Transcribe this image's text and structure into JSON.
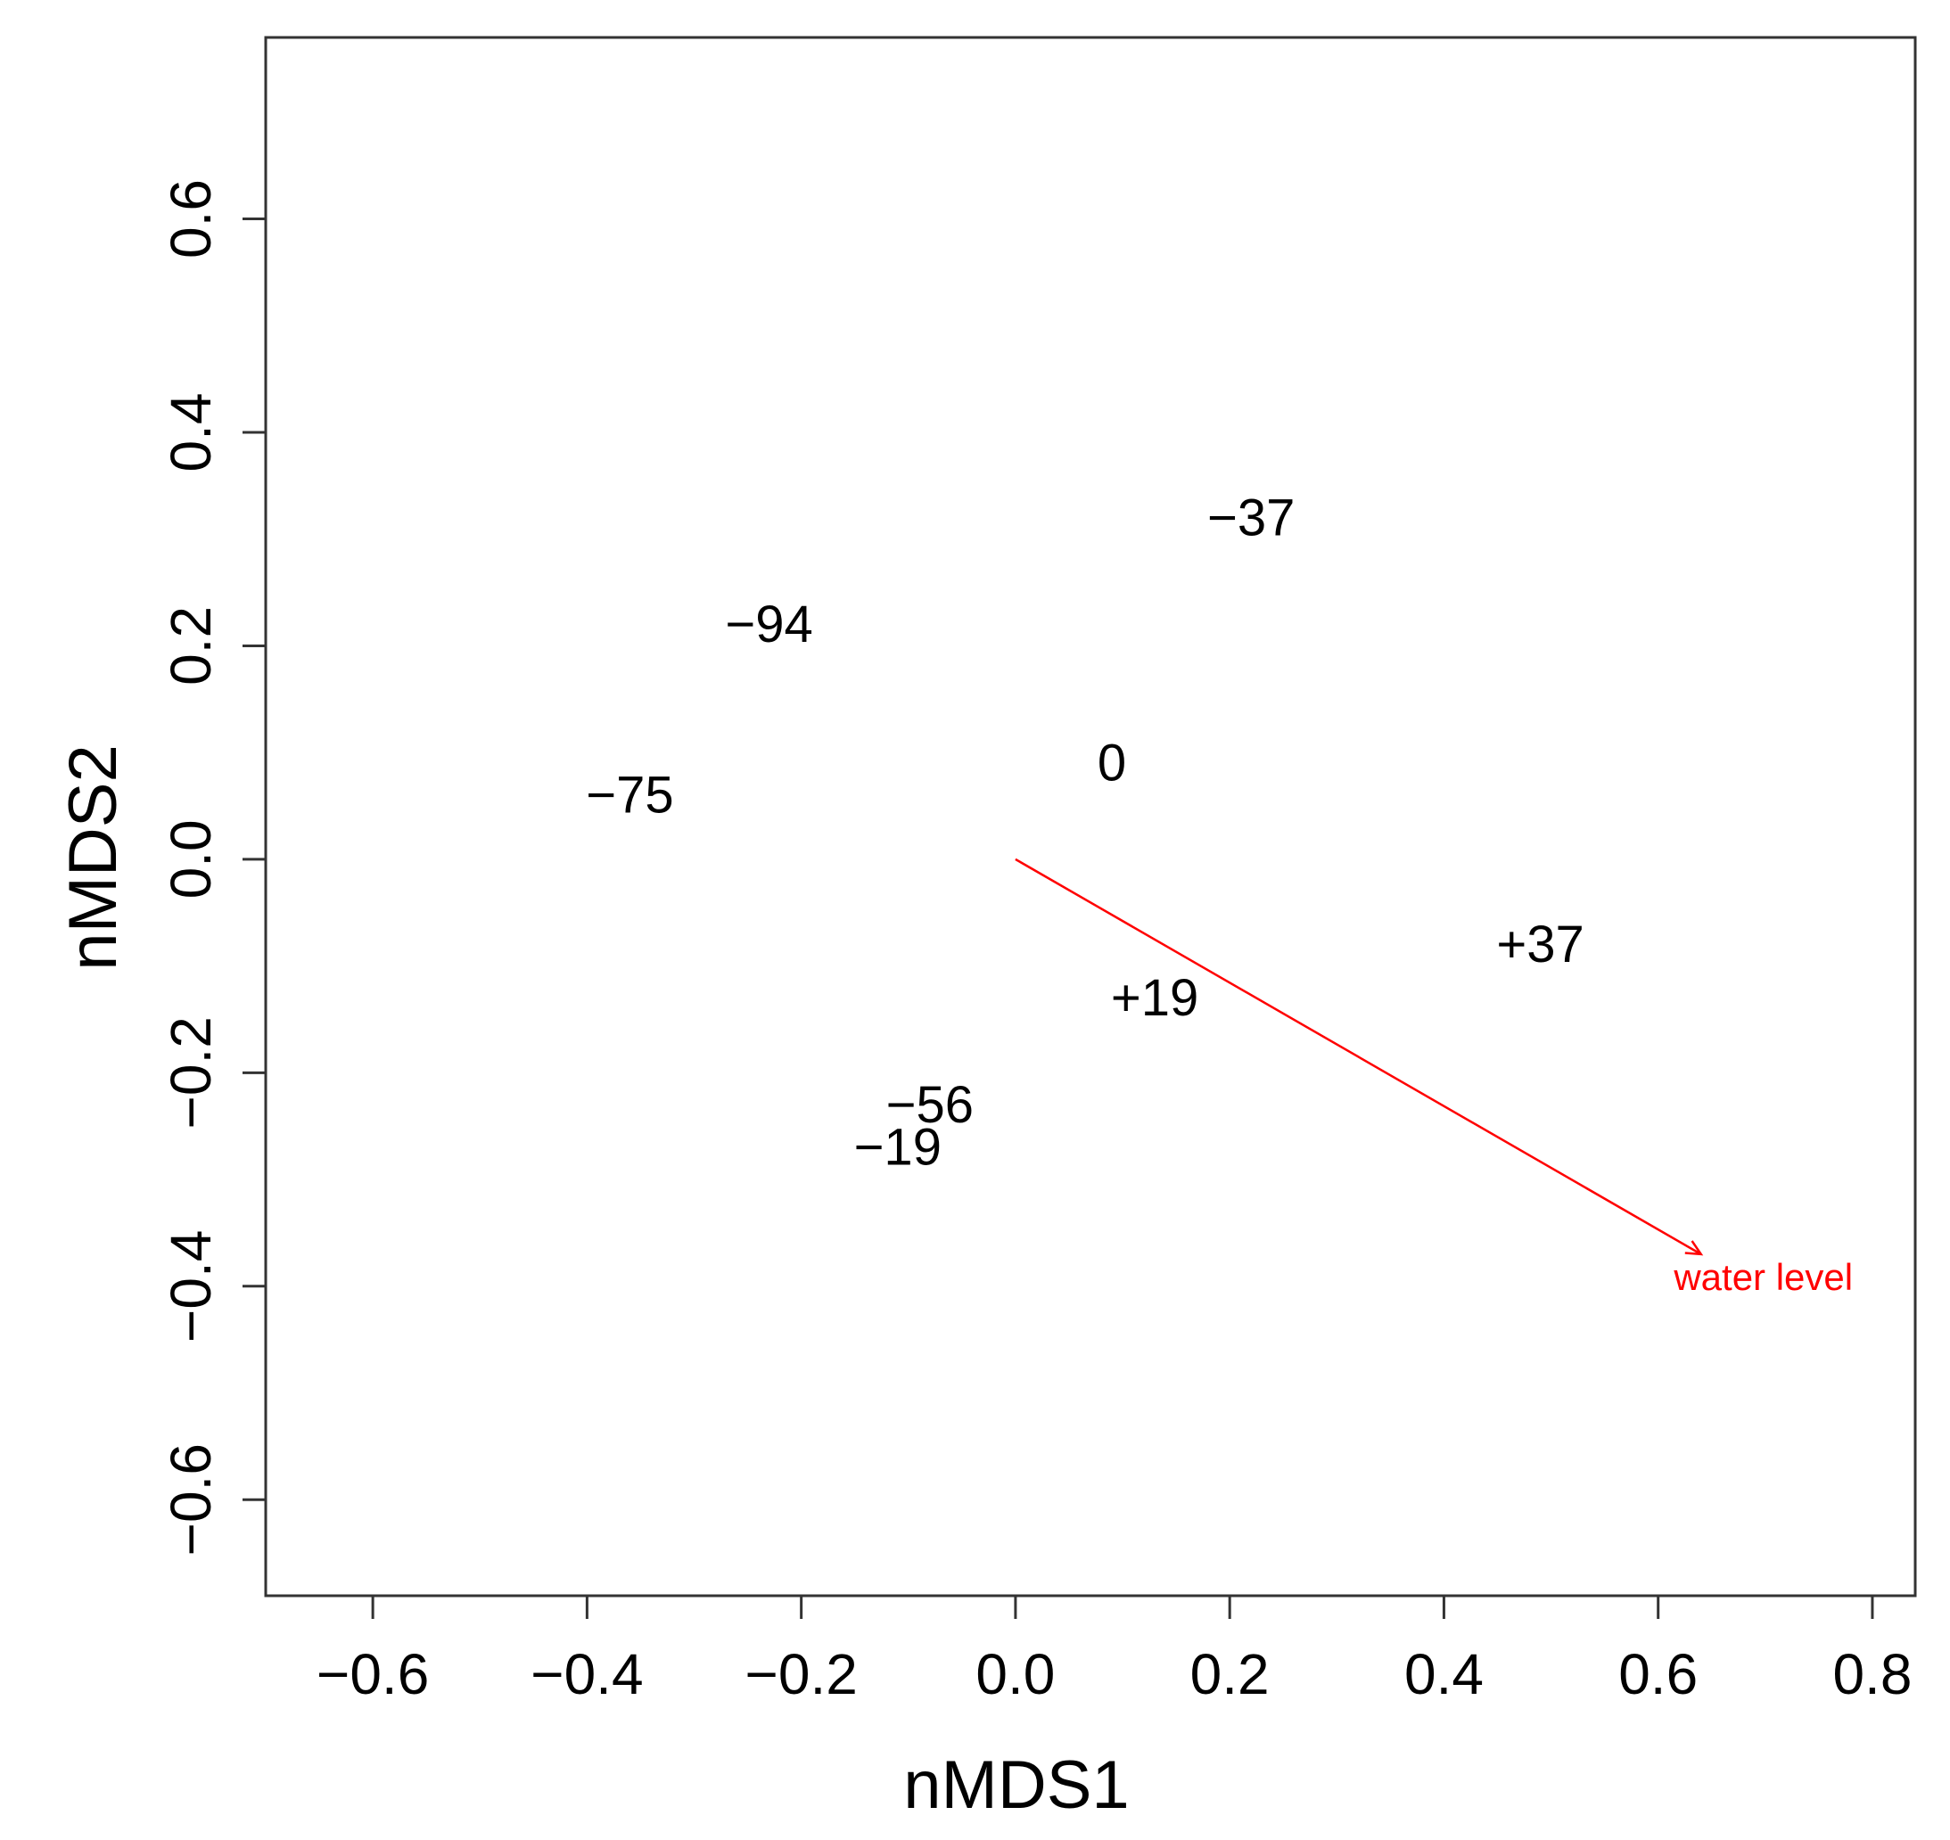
{
  "chart_data": {
    "type": "scatter",
    "title": "",
    "xlabel": "nMDS1",
    "ylabel": "nMDS2",
    "xlim": [
      -0.7,
      0.84
    ],
    "ylim": [
      -0.69,
      0.77
    ],
    "x_ticks": [
      -0.6,
      -0.4,
      -0.2,
      0.0,
      0.2,
      0.4,
      0.6,
      0.8
    ],
    "x_tick_labels": [
      "−0.6",
      "−0.4",
      "−0.2",
      "0.0",
      "0.2",
      "0.4",
      "0.6",
      "0.8"
    ],
    "y_ticks": [
      -0.6,
      -0.4,
      -0.2,
      0.0,
      0.2,
      0.4,
      0.6
    ],
    "y_tick_labels": [
      "−0.6",
      "−0.4",
      "−0.2",
      "0.0",
      "0.2",
      "0.4",
      "0.6"
    ],
    "grid": false,
    "points": [
      {
        "label": "−37",
        "x": 0.22,
        "y": 0.32
      },
      {
        "label": "−94",
        "x": -0.23,
        "y": 0.22
      },
      {
        "label": "0",
        "x": 0.09,
        "y": 0.09
      },
      {
        "label": "−75",
        "x": -0.36,
        "y": 0.06
      },
      {
        "label": "+37",
        "x": 0.49,
        "y": -0.08
      },
      {
        "label": "+19",
        "x": 0.13,
        "y": -0.13
      },
      {
        "label": "−56",
        "x": -0.08,
        "y": -0.23
      },
      {
        "label": "−19",
        "x": -0.11,
        "y": -0.27
      }
    ],
    "vectors": [
      {
        "label": "water level",
        "x0": 0.0,
        "y0": 0.0,
        "x1": 0.64,
        "y1": -0.37,
        "color": "#ff0000"
      }
    ]
  }
}
